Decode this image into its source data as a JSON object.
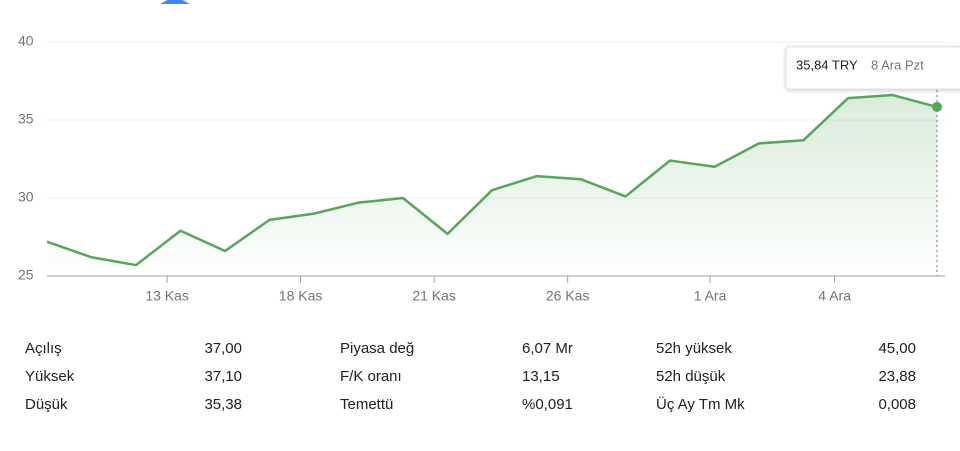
{
  "chart_data": {
    "type": "line",
    "x": [
      0,
      1,
      2,
      3,
      4,
      5,
      6,
      7,
      8,
      9,
      10,
      11,
      12,
      13,
      14,
      15,
      16,
      17,
      18,
      19,
      20
    ],
    "xlim": [
      0,
      20
    ],
    "xticks": [
      {
        "value": 2.7,
        "label": "13 Kas"
      },
      {
        "value": 5.7,
        "label": "18 Kas"
      },
      {
        "value": 8.7,
        "label": "21 Kas"
      },
      {
        "value": 11.7,
        "label": "26 Kas"
      },
      {
        "value": 14.9,
        "label": "1 Ara"
      },
      {
        "value": 17.7,
        "label": "4 Ara"
      }
    ],
    "series": [
      {
        "color": "#57a65b",
        "values": [
          27.2,
          26.2,
          25.7,
          27.9,
          26.6,
          28.6,
          29.0,
          29.7,
          30.0,
          27.7,
          30.5,
          31.4,
          31.2,
          30.1,
          32.4,
          32.0,
          33.5,
          33.7,
          36.4,
          36.6,
          35.84
        ]
      }
    ],
    "ylim": [
      25,
      40
    ],
    "yticks": [
      25,
      30,
      35,
      40
    ],
    "grid": true,
    "tooltip": {
      "value_label": "35,84 TRY",
      "date": "8 Ara Pzt"
    }
  },
  "stats": [
    [
      "Açılış",
      "37,00"
    ],
    [
      "Yüksek",
      "37,10"
    ],
    [
      "Düşük",
      "35,38"
    ],
    [
      "Piyasa değ",
      "6,07 Mr"
    ],
    [
      "F/K oranı",
      "13,15"
    ],
    [
      "Temettü",
      "%0,091"
    ],
    [
      "52h yüksek",
      "45,00"
    ],
    [
      "52h düşük",
      "23,88"
    ],
    [
      "Üç Ay Tm Mk",
      "0,008"
    ]
  ]
}
